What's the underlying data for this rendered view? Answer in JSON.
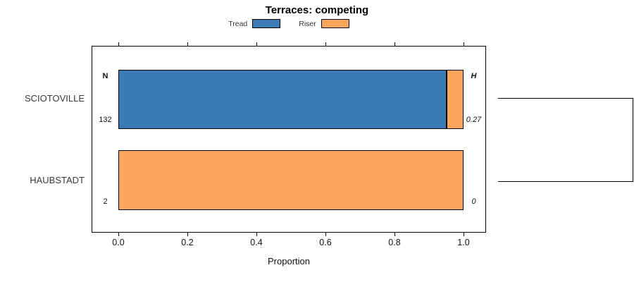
{
  "chart_data": {
    "type": "bar",
    "orientation": "horizontal",
    "stacked": true,
    "title": "Terraces: competing",
    "xlabel": "Proportion",
    "xlim": [
      0,
      1
    ],
    "xticks": [
      0.0,
      0.2,
      0.4,
      0.6,
      0.8,
      1.0
    ],
    "xtick_labels": [
      "0.0",
      "0.2",
      "0.4",
      "0.6",
      "0.8",
      "1.0"
    ],
    "categories": [
      "SCIOTOVILLE",
      "HAUBSTADT"
    ],
    "series": [
      {
        "name": "Tread",
        "color": "#3a7ab5",
        "values": [
          0.95,
          0
        ]
      },
      {
        "name": "Riser",
        "color": "#fca55f",
        "values": [
          0.05,
          1.0
        ]
      }
    ],
    "grid": false,
    "legend_position": "top",
    "row_annotations": {
      "left_header": "N",
      "right_header": "H",
      "rows": [
        {
          "category": "SCIOTOVILLE",
          "n": "132",
          "h": "0.27"
        },
        {
          "category": "HAUBSTADT",
          "n": "2",
          "h": "0"
        }
      ]
    }
  },
  "legend": {
    "items": [
      {
        "label": "Tread",
        "color": "#3a7ab5"
      },
      {
        "label": "Riser",
        "color": "#fca55f"
      }
    ]
  }
}
